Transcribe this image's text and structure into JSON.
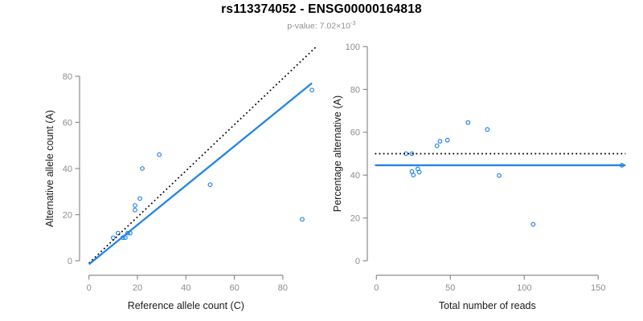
{
  "header": {
    "title": "rs113374052 - ENSG00000164818",
    "pvalue_prefix": "p-value: 7.02×10",
    "pvalue_exponent": "-3"
  },
  "colors": {
    "point_blue": "#2484e8",
    "line_blue": "#2484e8",
    "dotted_black": "#000000",
    "axis_gray": "#8c8c8c",
    "text_black": "#1a1a1a",
    "subtitle_gray": "#8f8f8f"
  },
  "chart_data": [
    {
      "id": "allele-counts",
      "type": "scatter",
      "xlabel": "Reference allele count (C)",
      "ylabel": "Alternative allele count (A)",
      "x_ticks": [
        0,
        20,
        40,
        60,
        80
      ],
      "y_ticks": [
        0,
        20,
        40,
        60,
        80
      ],
      "xlim": [
        -4,
        95
      ],
      "ylim": [
        -4,
        95
      ],
      "grid": false,
      "points": [
        [
          10,
          10
        ],
        [
          12,
          12
        ],
        [
          14,
          10
        ],
        [
          15,
          10
        ],
        [
          16,
          12
        ],
        [
          17,
          12
        ],
        [
          19,
          22
        ],
        [
          19,
          24
        ],
        [
          21,
          27
        ],
        [
          22,
          40
        ],
        [
          29,
          46
        ],
        [
          50,
          33
        ],
        [
          88,
          18
        ],
        [
          92,
          74
        ]
      ],
      "lines": [
        {
          "name": "identity-line",
          "style": "dotted",
          "color": "#000000",
          "x1": 0,
          "y1": -1,
          "x2": 94,
          "y2": 93
        },
        {
          "name": "regression-line",
          "style": "solid",
          "color": "#2484e8",
          "x1": 0,
          "y1": -1.5,
          "x2": 92,
          "y2": 77
        }
      ]
    },
    {
      "id": "percentage-vs-reads",
      "type": "scatter",
      "xlabel": "Total number of reads",
      "ylabel": "Percentage alternative (A)",
      "x_ticks": [
        0,
        50,
        100,
        150
      ],
      "y_ticks": [
        0,
        20,
        40,
        60,
        80,
        100
      ],
      "xlim": [
        -2,
        170
      ],
      "ylim": [
        -4,
        100
      ],
      "grid": false,
      "points": [
        [
          20,
          50
        ],
        [
          24,
          50
        ],
        [
          24,
          41.7
        ],
        [
          25,
          40
        ],
        [
          28,
          42.9
        ],
        [
          29,
          41.4
        ],
        [
          41,
          53.7
        ],
        [
          43,
          55.8
        ],
        [
          48,
          56.3
        ],
        [
          62,
          64.5
        ],
        [
          75,
          61.3
        ],
        [
          83,
          39.8
        ],
        [
          106,
          17
        ],
        [
          166,
          44.6
        ]
      ],
      "lines": [
        {
          "name": "null-50pct-line",
          "style": "dotted",
          "color": "#000000",
          "x1": -1,
          "y1": 50,
          "x2": 168.5,
          "y2": 50
        },
        {
          "name": "mean-pct-line",
          "style": "solid",
          "color": "#2484e8",
          "x1": -1,
          "y1": 44.6,
          "x2": 168.5,
          "y2": 44.6
        }
      ]
    }
  ]
}
